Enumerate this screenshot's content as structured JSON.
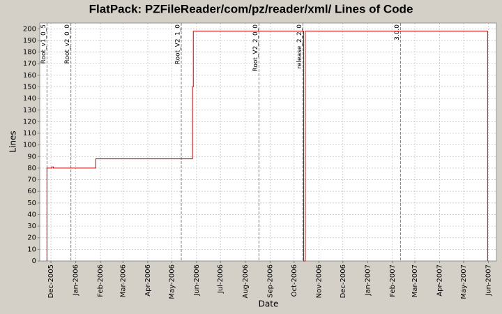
{
  "chart_data": {
    "type": "line",
    "step": "post",
    "title": "FlatPack: PZFileReader/com/pz/reader/xml/ Lines of Code",
    "x_label": "Date",
    "y_label": "Lines",
    "grid": true,
    "xlim": [
      "2005-11-17",
      "2007-06-11"
    ],
    "ylim": [
      0,
      205
    ],
    "yticks": [
      0,
      10,
      20,
      30,
      40,
      50,
      60,
      70,
      80,
      90,
      100,
      110,
      120,
      130,
      140,
      150,
      160,
      170,
      180,
      190,
      200
    ],
    "xticks": [
      {
        "value": "2005-12-01",
        "label": "Dec-2005"
      },
      {
        "value": "2006-01-01",
        "label": "Jan-2006"
      },
      {
        "value": "2006-02-01",
        "label": "Feb-2006"
      },
      {
        "value": "2006-03-01",
        "label": "Mar-2006"
      },
      {
        "value": "2006-04-01",
        "label": "Apr-2006"
      },
      {
        "value": "2006-05-01",
        "label": "May-2006"
      },
      {
        "value": "2006-06-01",
        "label": "Jun-2006"
      },
      {
        "value": "2006-07-01",
        "label": "Jul-2006"
      },
      {
        "value": "2006-08-01",
        "label": "Aug-2006"
      },
      {
        "value": "2006-09-01",
        "label": "Sep-2006"
      },
      {
        "value": "2006-10-01",
        "label": "Oct-2006"
      },
      {
        "value": "2006-11-01",
        "label": "Nov-2006"
      },
      {
        "value": "2006-12-01",
        "label": "Dec-2006"
      },
      {
        "value": "2007-01-01",
        "label": "Jan-2007"
      },
      {
        "value": "2007-02-01",
        "label": "Feb-2007"
      },
      {
        "value": "2007-03-01",
        "label": "Mar-2007"
      },
      {
        "value": "2007-04-01",
        "label": "Apr-2007"
      },
      {
        "value": "2007-05-01",
        "label": "May-2007"
      },
      {
        "value": "2007-06-01",
        "label": "Jun-2007"
      }
    ],
    "series": [
      {
        "name": "Lines",
        "color": "#cc0000",
        "x": [
          "2005-11-26",
          "2005-11-26",
          "2005-12-02",
          "2005-12-04",
          "2006-01-26",
          "2006-05-27",
          "2006-05-28",
          "2006-10-13",
          "2006-10-15",
          "2007-05-31"
        ],
        "values": [
          0,
          80,
          81,
          80,
          88,
          150,
          198,
          0,
          198,
          0
        ]
      }
    ],
    "annotations": [
      {
        "x": "2005-11-26",
        "label": "Root_v1_0_5"
      },
      {
        "x": "2005-12-26",
        "label": "Root_v2_0_0"
      },
      {
        "x": "2006-05-13",
        "label": "Root_V2_1_0"
      },
      {
        "x": "2006-08-18",
        "label": "Root_V2_2_0_0"
      },
      {
        "x": "2006-10-12",
        "label": "release_2_2_0"
      },
      {
        "x": "2007-02-11",
        "label": "3.0.0"
      }
    ]
  }
}
